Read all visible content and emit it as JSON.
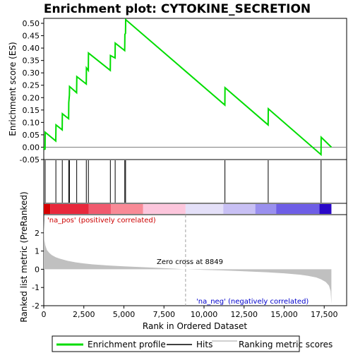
{
  "chart_data": {
    "type": "line",
    "title": "Enrichment plot: CYTOKINE_SECRETION",
    "xlabel": "Rank in Ordered Dataset",
    "ylabel_top": "Enrichment score (ES)",
    "ylabel_bottom": "Ranked list metric (PreRanked)",
    "x_range": [
      0,
      18000
    ],
    "x_ticks": [
      0,
      2500,
      5000,
      7500,
      10000,
      12500,
      15000,
      17500
    ],
    "x_tick_labels": [
      "0",
      "2,500",
      "5,000",
      "7,500",
      "10,000",
      "12,500",
      "15,000",
      "17,500"
    ],
    "es_ylim": [
      -0.05,
      0.52
    ],
    "es_ticks": [
      -0.05,
      0.0,
      0.05,
      0.1,
      0.15,
      0.2,
      0.25,
      0.3,
      0.35,
      0.4,
      0.45,
      0.5
    ],
    "es_tick_labels": [
      "-0.05",
      "0.00",
      "0.05",
      "0.10",
      "0.15",
      "0.20",
      "0.25",
      "0.30",
      "0.35",
      "0.40",
      "0.45",
      "0.50"
    ],
    "metric_ylim": [
      -2,
      3
    ],
    "metric_ticks": [
      -2,
      -1,
      0,
      1,
      2
    ],
    "metric_tick_labels": [
      "-2",
      "-1",
      "0",
      "1",
      "2"
    ],
    "enrichment_profile": {
      "name": "Enrichment profile",
      "color": "#00dd00",
      "x": [
        0,
        80,
        90,
        750,
        760,
        1150,
        1160,
        1550,
        1560,
        1600,
        1610,
        2050,
        2060,
        2650,
        2660,
        2780,
        2790,
        4150,
        4160,
        4450,
        4460,
        5050,
        5060,
        5100,
        5110,
        11300,
        11310,
        14000,
        14010,
        17300,
        17310,
        17950
      ],
      "y": [
        0.0,
        -0.01,
        0.06,
        0.025,
        0.09,
        0.07,
        0.135,
        0.115,
        0.18,
        0.21,
        0.245,
        0.22,
        0.285,
        0.255,
        0.32,
        0.31,
        0.38,
        0.31,
        0.37,
        0.36,
        0.42,
        0.39,
        0.455,
        0.46,
        0.515,
        0.17,
        0.24,
        0.09,
        0.155,
        -0.03,
        0.04,
        0.0
      ]
    },
    "hits": {
      "name": "Hits",
      "color": "#000000",
      "x": [
        85,
        755,
        1155,
        1555,
        1605,
        2055,
        2655,
        2785,
        4155,
        4455,
        5055,
        5105,
        11305,
        14005,
        17305
      ]
    },
    "ranking_metric": {
      "name": "Ranking metric scores",
      "color": "#c0c0c0",
      "x": [
        0,
        40,
        100,
        200,
        350,
        500,
        750,
        1000,
        1500,
        2000,
        2500,
        3000,
        4000,
        5000,
        6000,
        7000,
        8000,
        8849,
        10000,
        11000,
        12000,
        13000,
        14000,
        15000,
        16000,
        16500,
        17000,
        17300,
        17600,
        17800,
        17900,
        17950
      ],
      "y": [
        2.7,
        1.6,
        1.3,
        1.05,
        0.9,
        0.78,
        0.66,
        0.58,
        0.46,
        0.38,
        0.32,
        0.27,
        0.21,
        0.16,
        0.12,
        0.08,
        0.04,
        0.0,
        -0.03,
        -0.06,
        -0.09,
        -0.13,
        -0.17,
        -0.22,
        -0.3,
        -0.36,
        -0.45,
        -0.55,
        -0.7,
        -0.9,
        -1.2,
        -1.9
      ]
    },
    "zero_cross_rank": 8849,
    "annotations": {
      "pos_label": "'na_pos' (positively correlated)",
      "neg_label": "'na_neg' (negatively correlated)",
      "zero_cross": "Zero cross at 8849",
      "pos_color": "#cc0000",
      "neg_color": "#0000cc"
    },
    "heat_segments": [
      {
        "from": 0,
        "to": 400,
        "color": "#d40000"
      },
      {
        "from": 400,
        "to": 2800,
        "color": "#e8283c"
      },
      {
        "from": 2800,
        "to": 4200,
        "color": "#f05a6e"
      },
      {
        "from": 4200,
        "to": 6200,
        "color": "#f88a96"
      },
      {
        "from": 6200,
        "to": 8849,
        "color": "#fcc6dc"
      },
      {
        "from": 8849,
        "to": 11200,
        "color": "#e4e0f8"
      },
      {
        "from": 11200,
        "to": 13200,
        "color": "#c8c0f4"
      },
      {
        "from": 13200,
        "to": 14500,
        "color": "#9a90ee"
      },
      {
        "from": 14500,
        "to": 17200,
        "color": "#6e5ee6"
      },
      {
        "from": 17200,
        "to": 17950,
        "color": "#2a08c8"
      }
    ],
    "legend": [
      {
        "label": "Enrichment profile",
        "color": "#00dd00"
      },
      {
        "label": "Hits",
        "color": "#000000"
      },
      {
        "label": "Ranking metric scores",
        "color": "#c0c0c0"
      }
    ]
  }
}
